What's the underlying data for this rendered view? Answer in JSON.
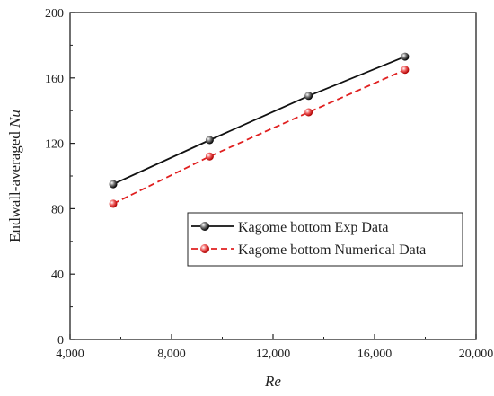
{
  "chart_data": {
    "type": "line",
    "xlabel": "Re",
    "ylabel_prefix": "Endwall-averaged ",
    "ylabel_var": "Nu",
    "xlim": [
      4000,
      20000
    ],
    "ylim": [
      0,
      200
    ],
    "xticks": [
      4000,
      8000,
      12000,
      16000,
      20000
    ],
    "xtick_labels": [
      "4,000",
      "8,000",
      "12,000",
      "16,000",
      "20,000"
    ],
    "yticks": [
      0,
      40,
      80,
      120,
      160,
      200
    ],
    "ytick_labels": [
      "0",
      "40",
      "80",
      "120",
      "160",
      "200"
    ],
    "grid": false,
    "legend_position": "lower-right",
    "series": [
      {
        "name": "Kagome bottom Exp Data",
        "color": "#111111",
        "style": "solid",
        "x": [
          5700,
          9500,
          13400,
          17200
        ],
        "y": [
          95,
          122,
          149,
          173
        ]
      },
      {
        "name": "Kagome bottom Numerical Data",
        "color": "#e02020",
        "style": "dashed",
        "x": [
          5700,
          9500,
          13400,
          17200
        ],
        "y": [
          83,
          112,
          139,
          165
        ]
      }
    ]
  }
}
